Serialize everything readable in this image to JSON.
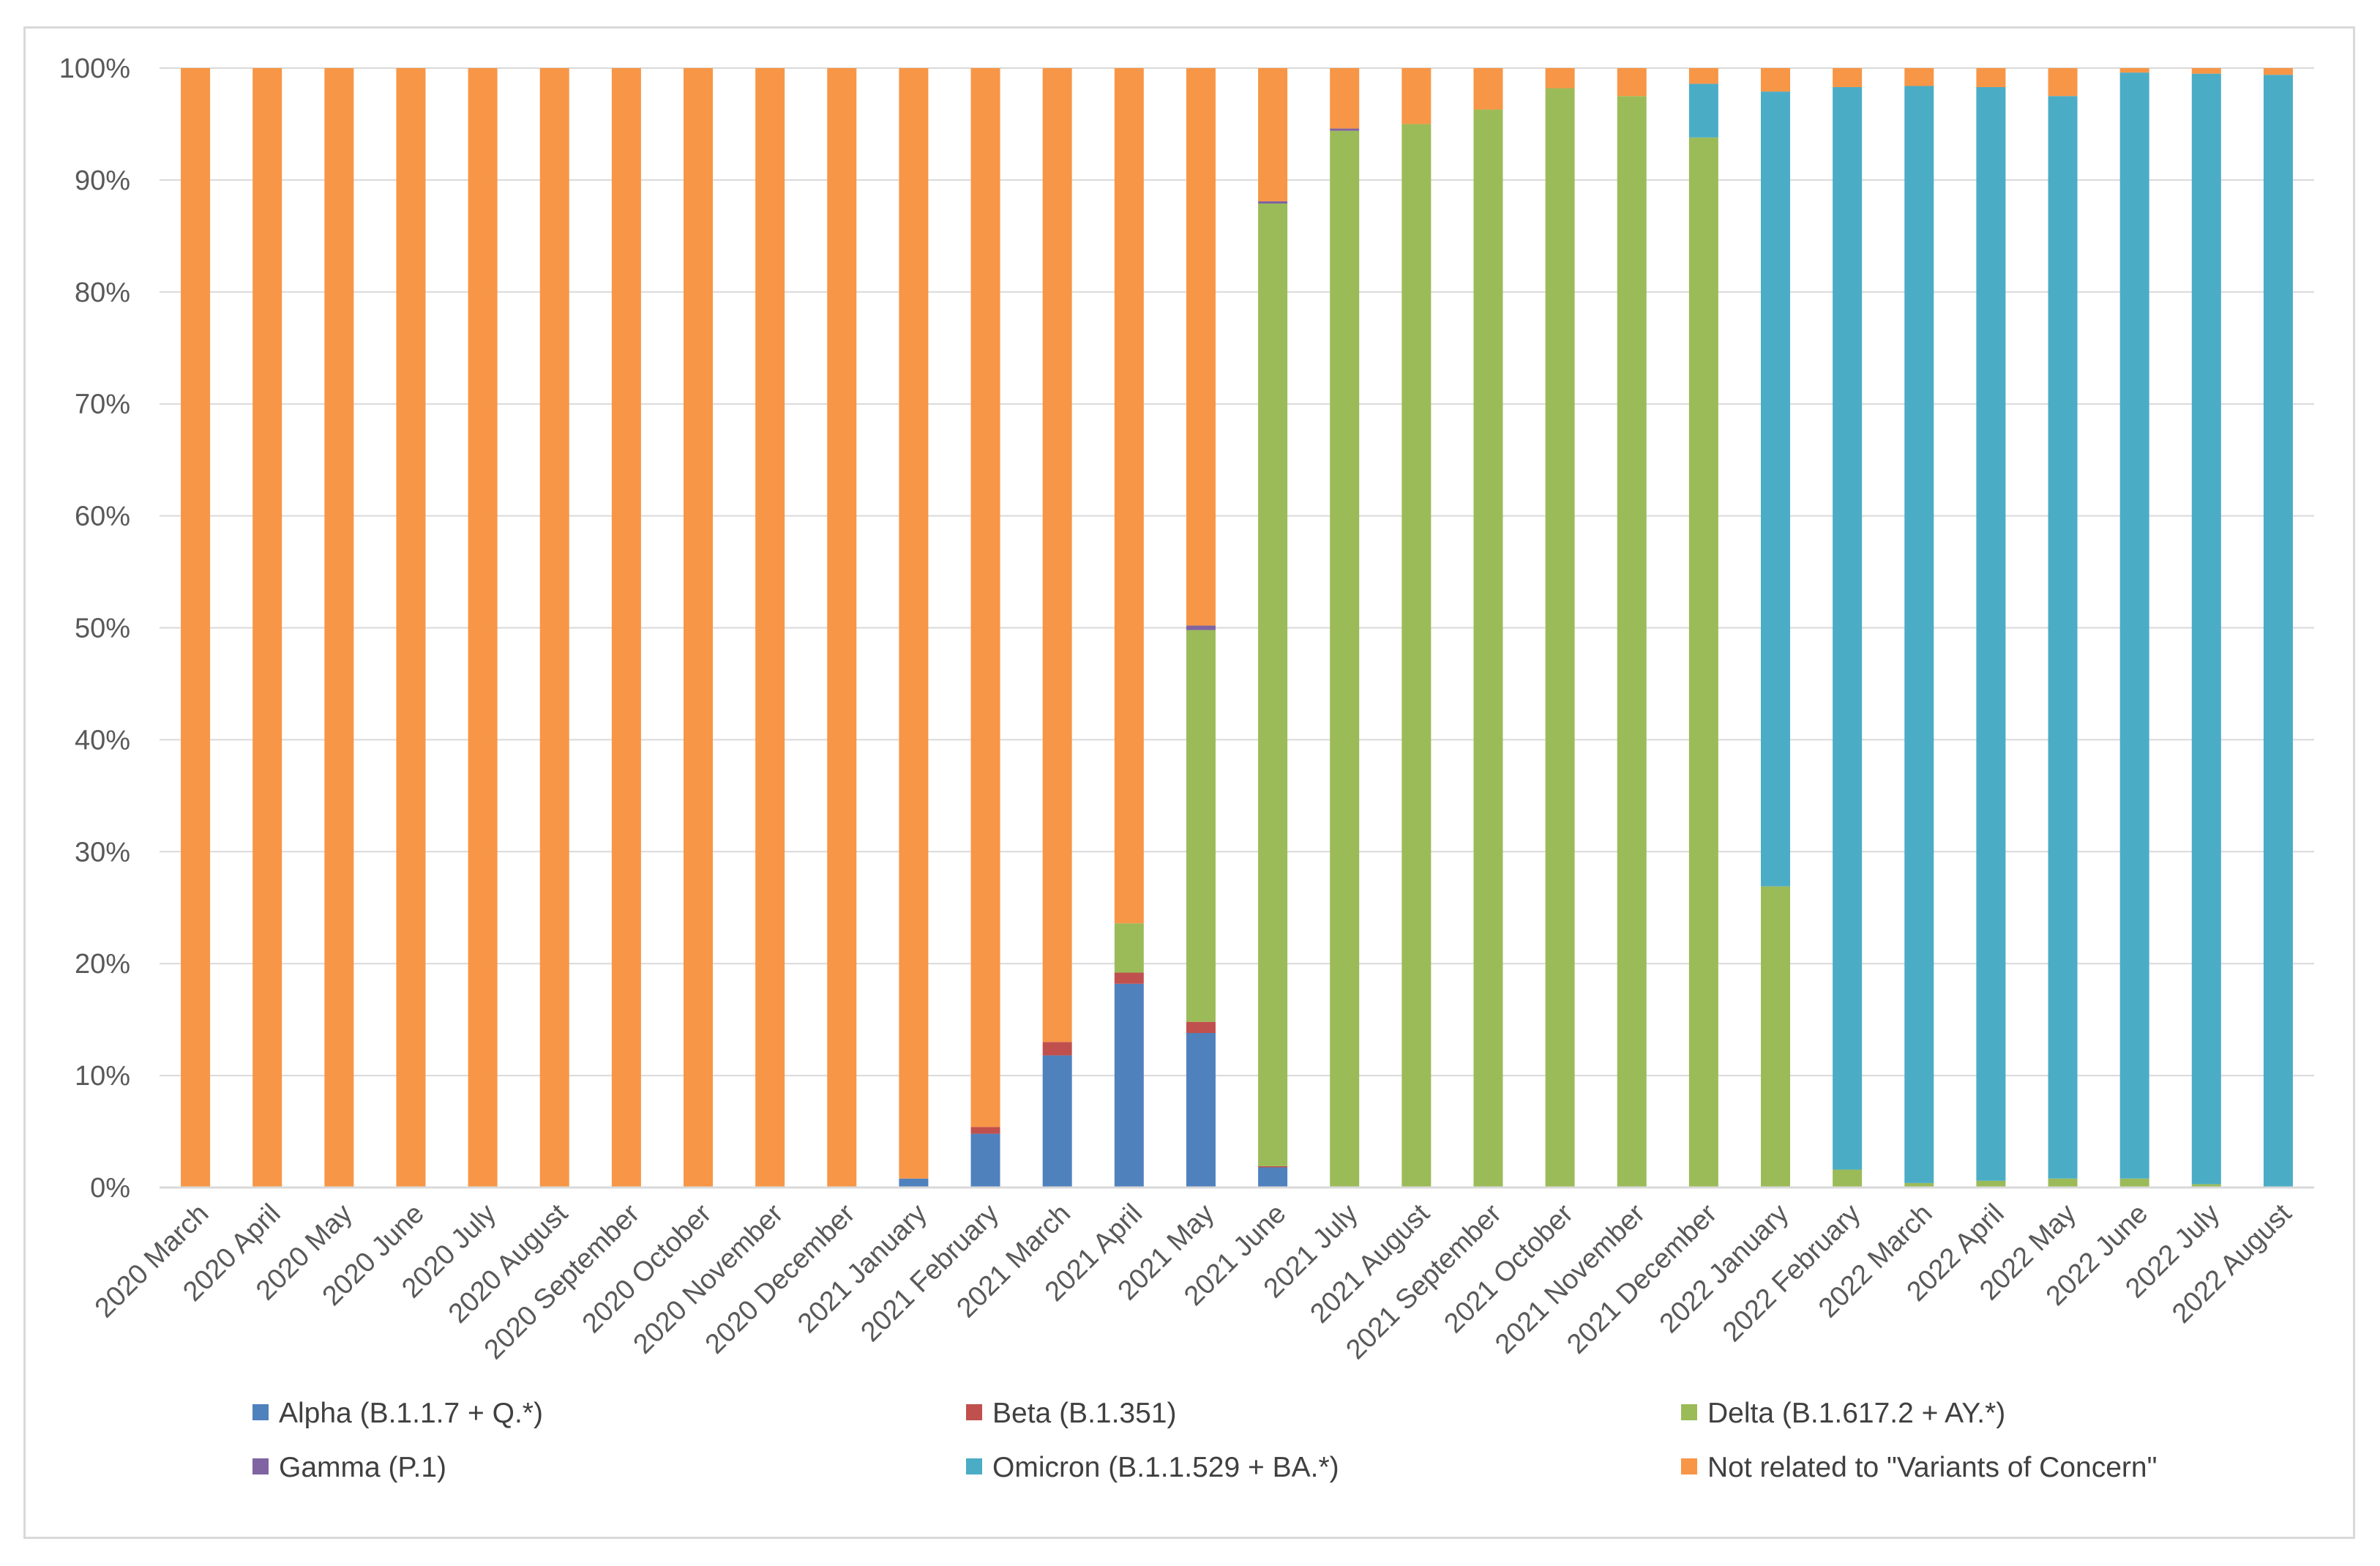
{
  "chart_data": {
    "type": "bar",
    "stacked": true,
    "percent_stacked": true,
    "title": "",
    "xlabel": "",
    "ylabel": "",
    "ylim": [
      0,
      100
    ],
    "y_ticks": [
      "0%",
      "10%",
      "20%",
      "30%",
      "40%",
      "50%",
      "60%",
      "70%",
      "80%",
      "90%",
      "100%"
    ],
    "grid": true,
    "legend_position": "bottom",
    "categories": [
      "2020 March",
      "2020 April",
      "2020 May",
      "2020 June",
      "2020 July",
      "2020 August",
      "2020 September",
      "2020 October",
      "2020 November",
      "2020 December",
      "2021 January",
      "2021 February",
      "2021 March",
      "2021 April",
      "2021 May",
      "2021 June",
      "2021 July",
      "2021 August",
      "2021 September",
      "2021 October",
      "2021 November",
      "2021 December",
      "2022 January",
      "2022 February",
      "2022 March",
      "2022 April",
      "2022 May",
      "2022 June",
      "2022 July",
      "2022 August"
    ],
    "series": [
      {
        "name": "Alpha (B.1.1.7 + Q.*)",
        "color": "#4f81bd",
        "values": [
          0,
          0,
          0,
          0,
          0,
          0,
          0,
          0,
          0,
          0,
          0.8,
          4.8,
          11.8,
          18.2,
          13.8,
          1.8,
          0.1,
          0,
          0,
          0,
          0,
          0,
          0,
          0,
          0,
          0,
          0,
          0,
          0,
          0
        ]
      },
      {
        "name": "Beta (B.1.351)",
        "color": "#c0504d",
        "values": [
          0,
          0,
          0,
          0,
          0,
          0,
          0,
          0,
          0,
          0,
          0,
          0.6,
          1.2,
          1.0,
          1.0,
          0.1,
          0,
          0,
          0,
          0,
          0,
          0,
          0,
          0,
          0,
          0,
          0,
          0,
          0,
          0
        ]
      },
      {
        "name": "Delta (B.1.617.2 + AY.*)",
        "color": "#9bbb59",
        "values": [
          0,
          0,
          0,
          0,
          0,
          0,
          0,
          0,
          0,
          0,
          0,
          0,
          0,
          4.4,
          35.0,
          86.0,
          94.3,
          95.0,
          96.3,
          98.2,
          97.5,
          93.8,
          26.9,
          1.6,
          0.4,
          0.6,
          0.8,
          0.8,
          0.3,
          0
        ]
      },
      {
        "name": "Gamma (P.1)",
        "color": "#8064a2",
        "values": [
          0,
          0,
          0,
          0,
          0,
          0,
          0,
          0,
          0,
          0,
          0,
          0,
          0,
          0,
          0.4,
          0.2,
          0.2,
          0,
          0,
          0,
          0,
          0,
          0,
          0,
          0,
          0,
          0,
          0,
          0,
          0
        ]
      },
      {
        "name": "Omicron (B.1.1.529 + BA.*)",
        "color": "#4bacc6",
        "values": [
          0,
          0,
          0,
          0,
          0,
          0,
          0,
          0,
          0,
          0,
          0,
          0,
          0,
          0,
          0,
          0,
          0,
          0,
          0,
          0,
          0,
          4.8,
          71.0,
          96.7,
          98.0,
          97.7,
          96.7,
          98.8,
          99.2,
          99.4
        ]
      },
      {
        "name": "Not related to \"Variants of Concern\"",
        "color": "#f79646",
        "values": [
          100,
          100,
          100,
          100,
          100,
          100,
          100,
          100,
          100,
          100,
          99.2,
          94.6,
          87.0,
          76.4,
          49.8,
          11.9,
          5.4,
          5.0,
          3.7,
          1.8,
          2.5,
          1.4,
          2.1,
          1.7,
          1.6,
          1.7,
          2.5,
          0.4,
          0.5,
          0.6
        ]
      }
    ]
  }
}
